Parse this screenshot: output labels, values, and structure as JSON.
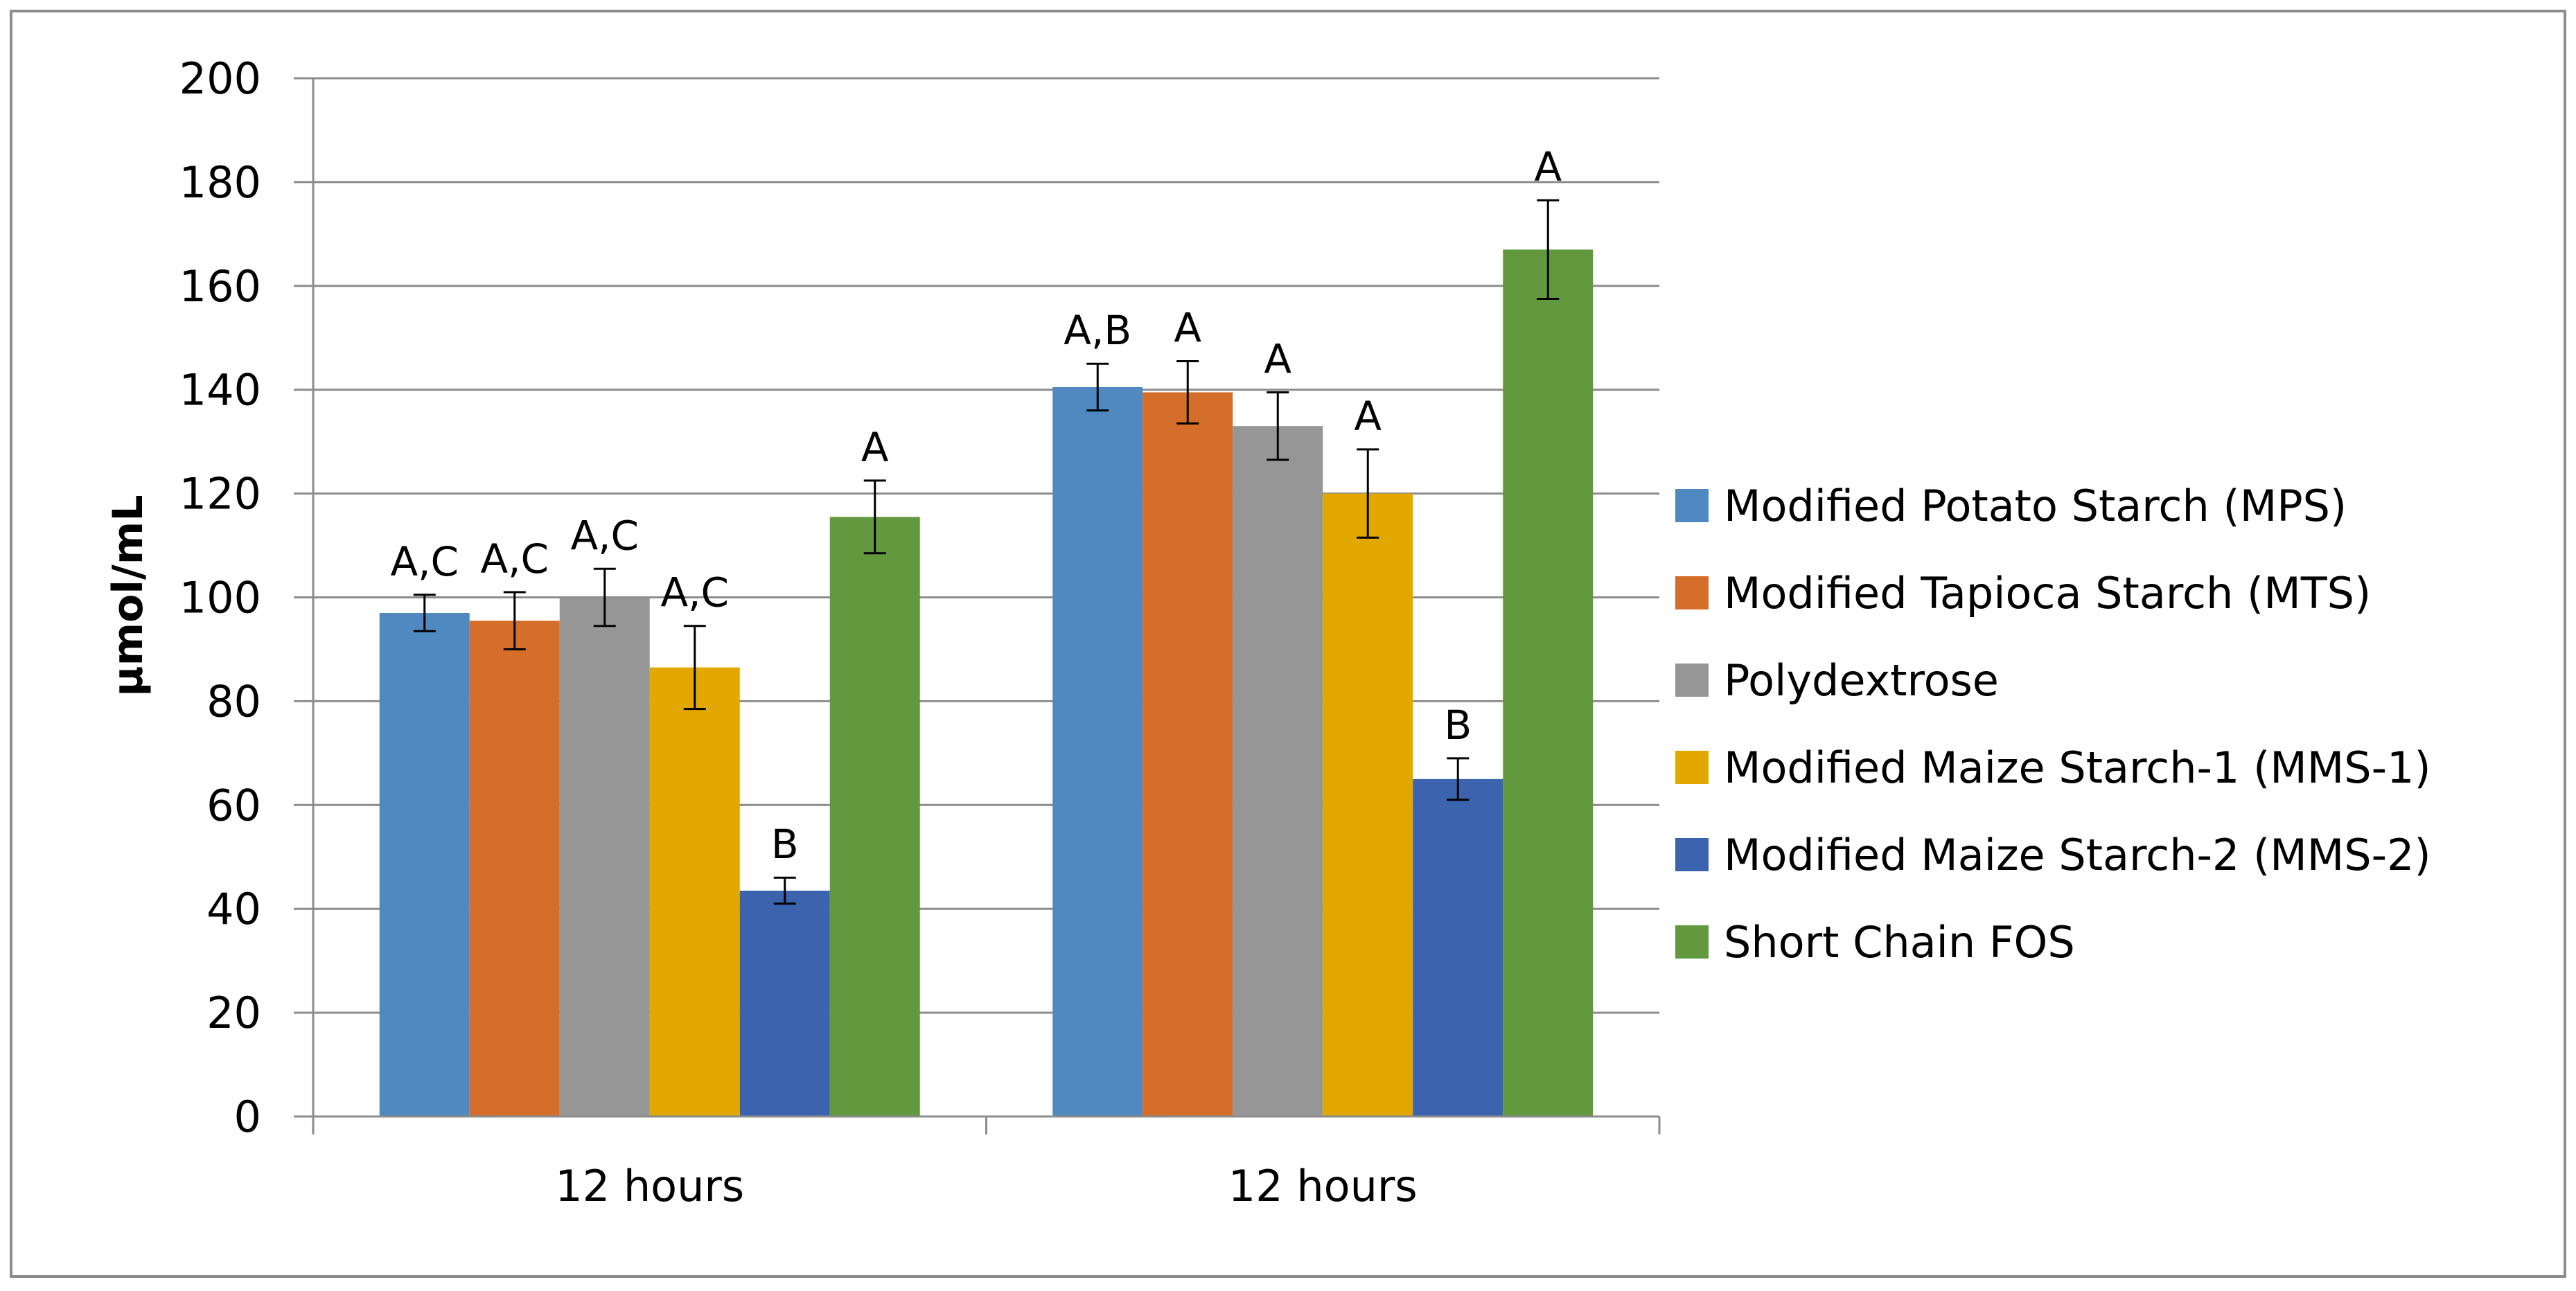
{
  "chart_data": {
    "type": "bar",
    "title": "",
    "xlabel": "",
    "ylabel": "µmol/mL",
    "ylim": [
      0,
      200
    ],
    "yticks": [
      0,
      20,
      40,
      60,
      80,
      100,
      120,
      140,
      160,
      180,
      200
    ],
    "categories": [
      "12 hours",
      "12 hours"
    ],
    "grid": true,
    "legend_position": "right",
    "series": [
      {
        "name": "Modified Potato Starch (MPS)",
        "color": "#4F89BF",
        "values": [
          97,
          140.5
        ],
        "errors": [
          3.5,
          4.5
        ],
        "labels": [
          "A,C",
          "A,B"
        ]
      },
      {
        "name": "Modified Tapioca Starch (MTS)",
        "color": "#D46E2A",
        "values": [
          95.5,
          139.5
        ],
        "errors": [
          5.5,
          6
        ],
        "labels": [
          "A,C",
          "A"
        ]
      },
      {
        "name": "Polydextrose",
        "color": "#969696",
        "values": [
          100,
          133
        ],
        "errors": [
          5.5,
          6.5
        ],
        "labels": [
          "A,C",
          "A"
        ]
      },
      {
        "name": "Modified Maize Starch-1 (MMS-1)",
        "color": "#E3A800",
        "values": [
          86.5,
          120
        ],
        "errors": [
          8,
          8.5
        ],
        "labels": [
          "A,C",
          "A"
        ]
      },
      {
        "name": "Modified Maize Starch-2 (MMS-2)",
        "color": "#3C63AE",
        "values": [
          43.5,
          65
        ],
        "errors": [
          2.5,
          4
        ],
        "labels": [
          "B",
          "B"
        ]
      },
      {
        "name": "Short Chain FOS",
        "color": "#62993E",
        "values": [
          115.5,
          167
        ],
        "errors": [
          7,
          9.5
        ],
        "labels": [
          "A",
          "A"
        ]
      }
    ]
  }
}
